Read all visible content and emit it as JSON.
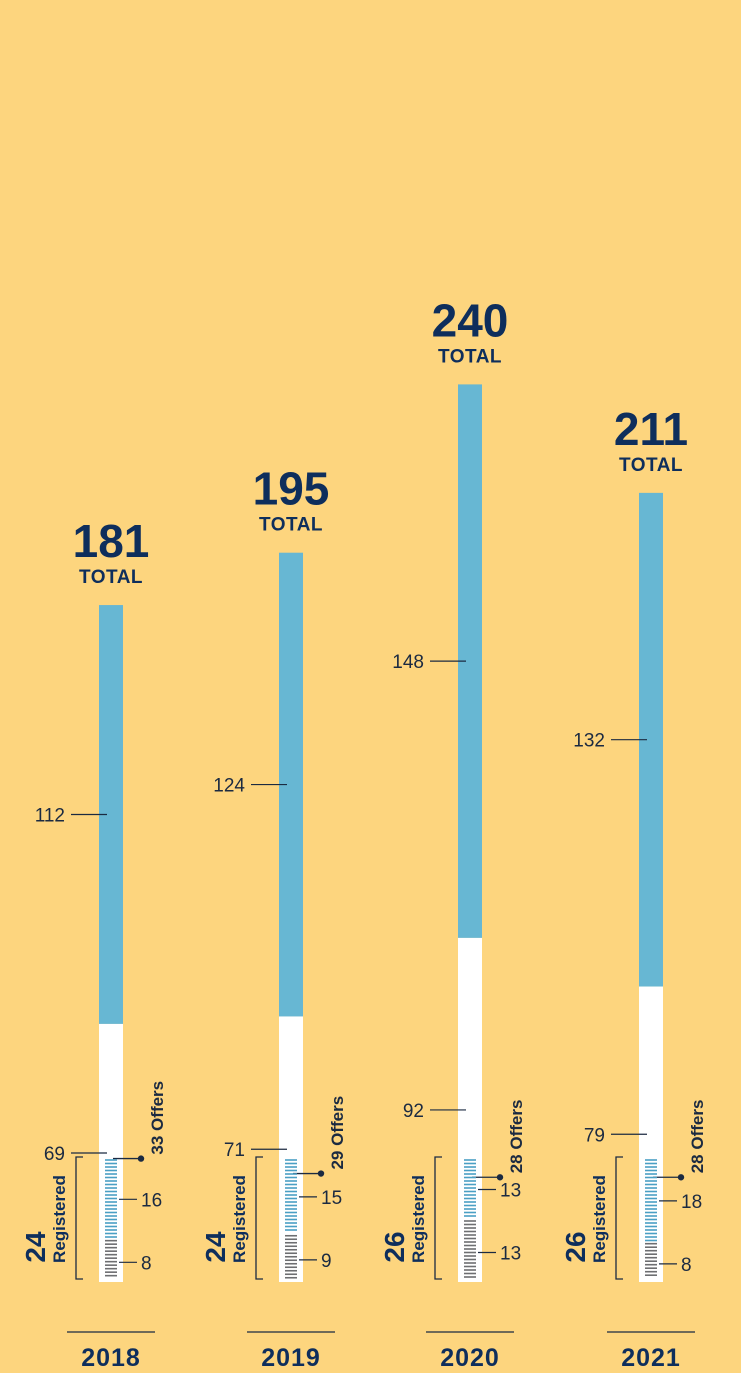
{
  "chart_data": {
    "type": "bar",
    "categories": [
      "2018",
      "2019",
      "2020",
      "2021"
    ],
    "total_suffix": "TOTAL",
    "registered_word": "Registered",
    "offers_word": "Offers",
    "columns": [
      {
        "year": "2018",
        "total": 181,
        "blue": 112,
        "white": 69,
        "offers": 33,
        "registered": 24,
        "reg_blue": 16,
        "reg_gray": 8
      },
      {
        "year": "2019",
        "total": 195,
        "blue": 124,
        "white": 71,
        "offers": 29,
        "registered": 24,
        "reg_blue": 15,
        "reg_gray": 9
      },
      {
        "year": "2020",
        "total": 240,
        "blue": 148,
        "white": 92,
        "offers": 28,
        "registered": 26,
        "reg_blue": 13,
        "reg_gray": 13
      },
      {
        "year": "2021",
        "total": 211,
        "blue": 132,
        "white": 79,
        "offers": 28,
        "registered": 26,
        "reg_blue": 18,
        "reg_gray": 8
      }
    ],
    "colors": {
      "background": "#FDD57E",
      "blue_segment": "#67B7D3",
      "white_segment": "#FFFFFF",
      "registered_blue_ticks": "#4A9FC4",
      "registered_gray_ticks": "#6D6E71",
      "heading_text": "#0E2E5C",
      "label_text": "#1B2A41"
    }
  }
}
